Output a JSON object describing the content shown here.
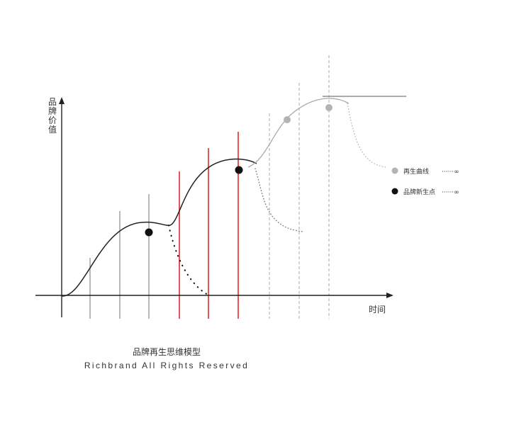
{
  "diagram": {
    "y_axis_label": "品牌价值",
    "x_axis_label": "时间",
    "legend": [
      {
        "label": "再生曲线",
        "marker": "gray-dot",
        "line_text": "······∞"
      },
      {
        "label": "品牌新生点",
        "marker": "black-dot",
        "line_text": "······∞"
      }
    ],
    "caption_title": "品牌再生思维模型",
    "caption_subtitle": "Richbrand All Rights Reserved"
  },
  "colors": {
    "main_curve": "#222222",
    "regeneration_curve": "#aaaaaa",
    "red_lines": "#e10a0a",
    "gray_lines": "#999999",
    "new_point": "#111111",
    "regen_point": "#b3b3b3"
  }
}
